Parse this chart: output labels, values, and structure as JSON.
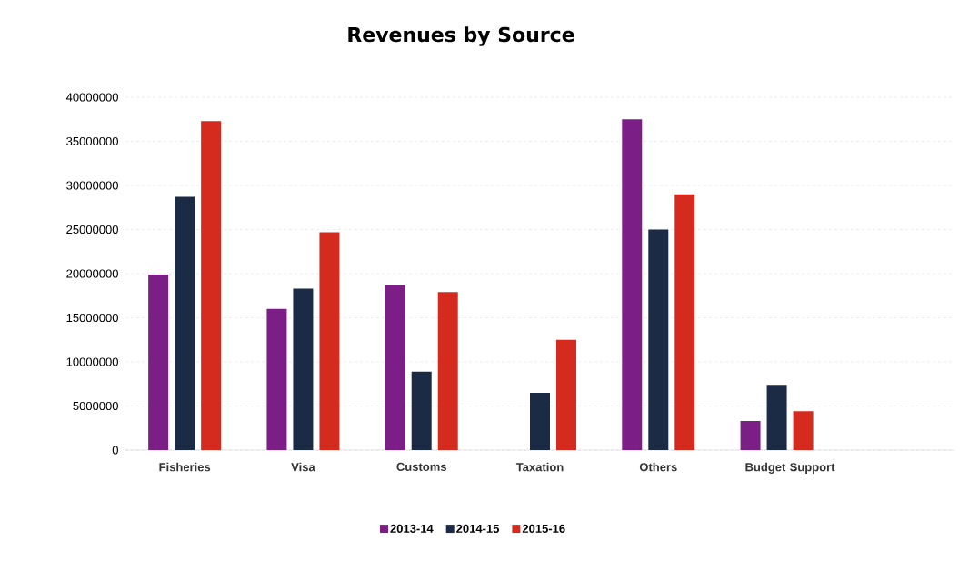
{
  "chart_data": {
    "type": "bar",
    "title": "Revenues by Source",
    "categories": [
      "Fisheries",
      "Visa",
      "Customs",
      "Taxation",
      "Others",
      "Budget Support",
      null
    ],
    "series": [
      {
        "name": "2013-14",
        "color": "#7b1f86",
        "values": [
          19900000,
          16000000,
          18700000,
          null,
          37500000,
          3300000,
          null
        ]
      },
      {
        "name": "2014-15",
        "color": "#1b2a45",
        "values": [
          28700000,
          18300000,
          8900000,
          6500000,
          25000000,
          7400000,
          null
        ]
      },
      {
        "name": "2015-16",
        "color": "#d52b1e",
        "values": [
          37300000,
          24700000,
          17900000,
          12500000,
          29000000,
          4400000,
          null
        ]
      }
    ],
    "ylim": [
      0,
      40000000
    ],
    "yticks": [
      0,
      5000000,
      10000000,
      15000000,
      20000000,
      25000000,
      30000000,
      35000000,
      40000000
    ],
    "grid": "y",
    "legend": "bottom"
  }
}
